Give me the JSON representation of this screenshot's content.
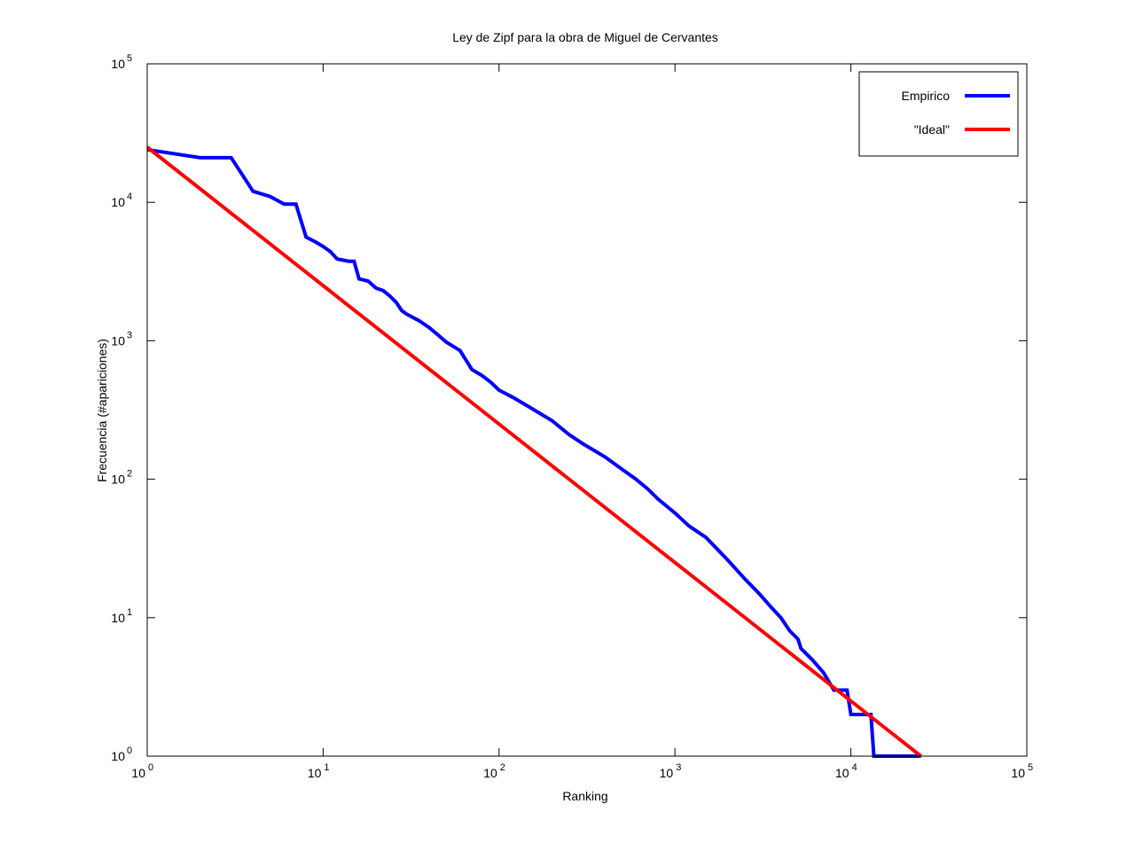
{
  "chart_data": {
    "type": "line",
    "title": "Ley de Zipf para la obra de Miguel de Cervantes",
    "xlabel": "Ranking",
    "ylabel": "Frecuencia (#apariciones)",
    "xscale": "log",
    "yscale": "log",
    "xlim": [
      1,
      100000
    ],
    "ylim": [
      1,
      100000
    ],
    "x_ticks": [
      {
        "value": 1,
        "base": "10",
        "exp": "0"
      },
      {
        "value": 10,
        "base": "10",
        "exp": "1"
      },
      {
        "value": 100,
        "base": "10",
        "exp": "2"
      },
      {
        "value": 1000,
        "base": "10",
        "exp": "3"
      },
      {
        "value": 10000,
        "base": "10",
        "exp": "4"
      },
      {
        "value": 100000,
        "base": "10",
        "exp": "5"
      }
    ],
    "y_ticks": [
      {
        "value": 1,
        "base": "10",
        "exp": "0"
      },
      {
        "value": 10,
        "base": "10",
        "exp": "1"
      },
      {
        "value": 100,
        "base": "10",
        "exp": "2"
      },
      {
        "value": 1000,
        "base": "10",
        "exp": "3"
      },
      {
        "value": 10000,
        "base": "10",
        "exp": "4"
      },
      {
        "value": 100000,
        "base": "10",
        "exp": "5"
      }
    ],
    "grid": false,
    "legend_position": "top-right",
    "series": [
      {
        "name": "Empirico",
        "color": "#0000ff",
        "points": [
          [
            1,
            24000
          ],
          [
            2,
            21000
          ],
          [
            3,
            21000
          ],
          [
            4,
            12000
          ],
          [
            5,
            11000
          ],
          [
            6,
            9700
          ],
          [
            7,
            9700
          ],
          [
            8,
            5600
          ],
          [
            9,
            5200
          ],
          [
            10,
            4800
          ],
          [
            11,
            4400
          ],
          [
            12,
            3900
          ],
          [
            14,
            3750
          ],
          [
            15,
            3750
          ],
          [
            16,
            2800
          ],
          [
            18,
            2700
          ],
          [
            20,
            2400
          ],
          [
            22,
            2300
          ],
          [
            24,
            2100
          ],
          [
            26,
            1900
          ],
          [
            28,
            1650
          ],
          [
            30,
            1550
          ],
          [
            35,
            1400
          ],
          [
            40,
            1250
          ],
          [
            45,
            1100
          ],
          [
            50,
            980
          ],
          [
            60,
            850
          ],
          [
            70,
            620
          ],
          [
            80,
            560
          ],
          [
            90,
            500
          ],
          [
            100,
            440
          ],
          [
            120,
            390
          ],
          [
            150,
            330
          ],
          [
            200,
            265
          ],
          [
            250,
            210
          ],
          [
            300,
            180
          ],
          [
            400,
            145
          ],
          [
            500,
            118
          ],
          [
            600,
            100
          ],
          [
            700,
            85
          ],
          [
            800,
            72
          ],
          [
            1000,
            57
          ],
          [
            1200,
            46
          ],
          [
            1500,
            38
          ],
          [
            2000,
            26
          ],
          [
            2500,
            19
          ],
          [
            3000,
            15
          ],
          [
            3500,
            12
          ],
          [
            4000,
            10
          ],
          [
            4500,
            8
          ],
          [
            5000,
            7
          ],
          [
            5200,
            6
          ],
          [
            6000,
            5
          ],
          [
            7000,
            4
          ],
          [
            8000,
            3
          ],
          [
            9500,
            3
          ],
          [
            10000,
            2
          ],
          [
            13000,
            2
          ],
          [
            13500,
            1
          ],
          [
            25000,
            1
          ]
        ]
      },
      {
        "name": "\"Ideal\"",
        "color": "#ff0000",
        "points": [
          [
            1,
            25000
          ],
          [
            25000,
            1
          ]
        ]
      }
    ]
  }
}
